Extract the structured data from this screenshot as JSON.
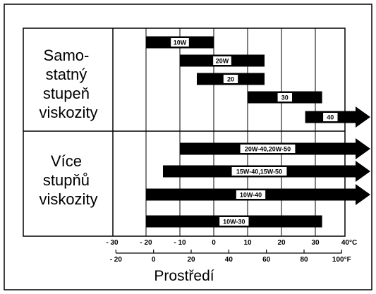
{
  "groups": [
    {
      "lines": [
        "Samo-",
        "statný",
        "stupeň",
        "viskozity"
      ]
    },
    {
      "lines": [
        "Více",
        "stupňů",
        "viskozity"
      ]
    }
  ],
  "bars": [
    {
      "label": "10W",
      "from_c": -20,
      "to_c": 0,
      "arrow": false
    },
    {
      "label": "20W",
      "from_c": -10,
      "to_c": 15,
      "arrow": false
    },
    {
      "label": "20",
      "from_c": -5,
      "to_c": 15,
      "arrow": false
    },
    {
      "label": "30",
      "from_c": 10,
      "to_c": 32,
      "arrow": false
    },
    {
      "label": "40",
      "from_c": 27,
      "to_c": 40,
      "arrow": true
    },
    {
      "label": "20W-40,20W-50",
      "from_c": -10,
      "to_c": 40,
      "arrow": true
    },
    {
      "label": "15W-40,15W-50",
      "from_c": -15,
      "to_c": 40,
      "arrow": true
    },
    {
      "label": "10W-40",
      "from_c": -20,
      "to_c": 40,
      "arrow": true
    },
    {
      "label": "10W-30",
      "from_c": -20,
      "to_c": 32,
      "arrow": false
    }
  ],
  "axis_c": {
    "ticks": [
      -30,
      -20,
      -10,
      0,
      10,
      20,
      30
    ],
    "end_label": "40°C"
  },
  "axis_f": {
    "ticks": [
      -20,
      0,
      20,
      40,
      60,
      80
    ],
    "end_label": "100°F"
  },
  "xlabel": "Prostředí",
  "colors": {
    "bar": "#000000",
    "frame": "#000000",
    "background": "#ffffff"
  }
}
